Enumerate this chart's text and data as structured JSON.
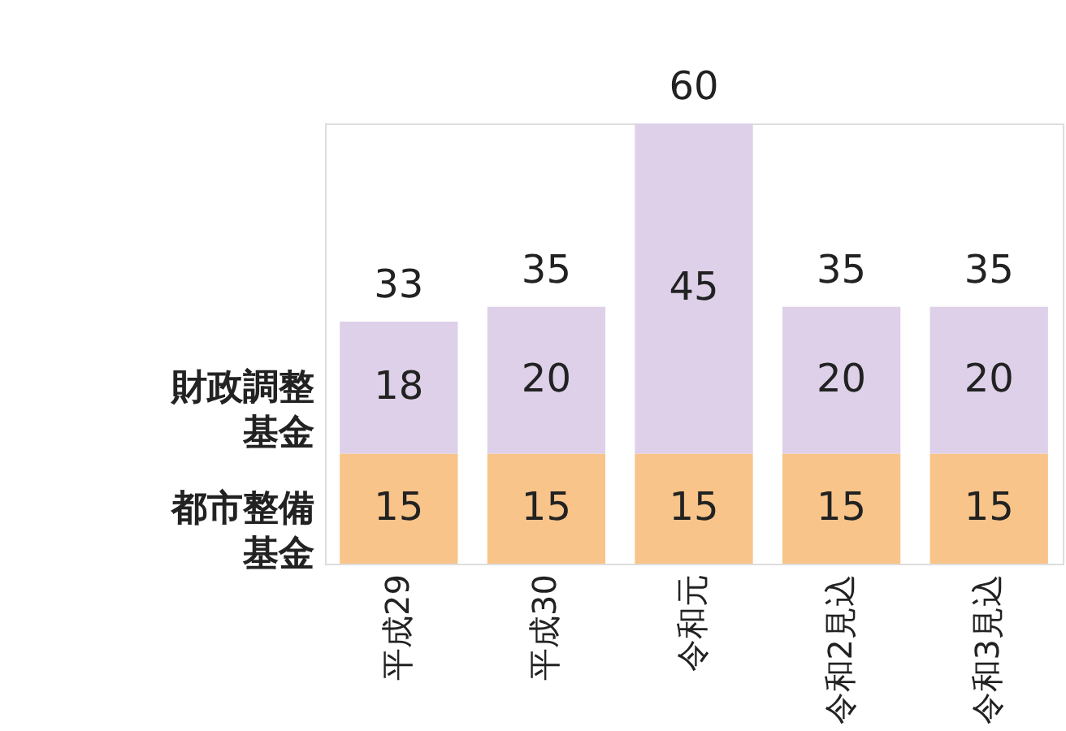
{
  "chart_data": {
    "type": "bar",
    "stacked": true,
    "data_labels": true,
    "categories": [
      "平成29",
      "平成30",
      "令和元",
      "令和2見込",
      "令和3見込"
    ],
    "series": [
      {
        "name": "都市整備基金",
        "color": "#f8c489",
        "values": [
          15,
          15,
          15,
          15,
          15
        ]
      },
      {
        "name": "財政調整基金",
        "color": "#ddd0e8",
        "values": [
          18,
          20,
          45,
          20,
          20
        ]
      }
    ],
    "totals": [
      "33",
      "35",
      "60",
      "35",
      "35"
    ]
  }
}
